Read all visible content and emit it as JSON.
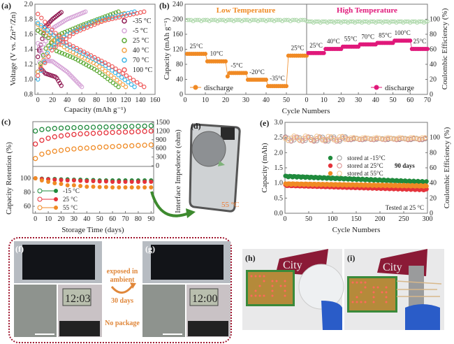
{
  "colors": {
    "green": "#1f8a3c",
    "red": "#e5323b",
    "orange": "#f08a24",
    "pink": "#e0187a",
    "ce_light": "#a9d6a6",
    "dotted_box": "#a0162e"
  },
  "chart_data": [
    {
      "panel": "(a)",
      "type": "scatter",
      "xlabel": "Capacity (mAh g⁻¹)",
      "ylabel": "Voltage (V vs. Zn²⁺/Zn)",
      "xlim": [
        0,
        160
      ],
      "ylim": [
        0.8,
        2.0
      ],
      "xticks": [
        "0",
        "20",
        "40",
        "60",
        "80",
        "100",
        "120",
        "140",
        "160"
      ],
      "yticks": [
        "0.8",
        "1.0",
        "1.2",
        "1.4",
        "1.6",
        "1.8",
        "2.0"
      ],
      "legend_position": "right",
      "series": [
        {
          "name": "-35 °C",
          "color": "#8e1650",
          "charge": [
            [
              0,
              1.3
            ],
            [
              5,
              1.5
            ],
            [
              10,
              1.7
            ],
            [
              20,
              1.8
            ],
            [
              33,
              1.9
            ]
          ],
          "discharge": [
            [
              0,
              1.65
            ],
            [
              4,
              1.15
            ],
            [
              10,
              1.08
            ],
            [
              25,
              1.03
            ],
            [
              33,
              0.9
            ]
          ]
        },
        {
          "name": "-5 °C",
          "color": "#d7a6d8",
          "charge": [
            [
              0,
              1.1
            ],
            [
              5,
              1.4
            ],
            [
              20,
              1.68
            ],
            [
              40,
              1.8
            ],
            [
              65,
              1.9
            ]
          ],
          "discharge": [
            [
              0,
              1.48
            ],
            [
              10,
              1.25
            ],
            [
              20,
              1.24
            ],
            [
              40,
              1.1
            ],
            [
              60,
              0.9
            ]
          ]
        },
        {
          "name": "25 °C",
          "color": "#5aa832",
          "charge": [
            [
              0,
              1.1
            ],
            [
              10,
              1.4
            ],
            [
              30,
              1.6
            ],
            [
              60,
              1.72
            ],
            [
              110,
              1.9
            ]
          ],
          "discharge": [
            [
              0,
              1.65
            ],
            [
              15,
              1.55
            ],
            [
              25,
              1.38
            ],
            [
              50,
              1.28
            ],
            [
              80,
              1.12
            ],
            [
              110,
              0.9
            ]
          ]
        },
        {
          "name": "40 °C",
          "color": "#f3a348",
          "charge": [
            [
              0,
              1.1
            ],
            [
              20,
              1.5
            ],
            [
              60,
              1.7
            ],
            [
              118,
              1.88
            ]
          ],
          "discharge": [
            [
              0,
              1.73
            ],
            [
              20,
              1.55
            ],
            [
              40,
              1.4
            ],
            [
              80,
              1.2
            ],
            [
              120,
              0.9
            ]
          ]
        },
        {
          "name": "70 °C",
          "color": "#3fb6e6",
          "charge": [
            [
              0,
              1.0
            ],
            [
              15,
              1.4
            ],
            [
              40,
              1.6
            ],
            [
              80,
              1.78
            ],
            [
              132,
              1.9
            ]
          ],
          "discharge": [
            [
              0,
              1.75
            ],
            [
              20,
              1.6
            ],
            [
              40,
              1.45
            ],
            [
              90,
              1.2
            ],
            [
              132,
              0.9
            ]
          ]
        },
        {
          "name": "100 °C",
          "color": "#ef5b5b",
          "charge": [
            [
              0,
              1.05
            ],
            [
              20,
              1.4
            ],
            [
              50,
              1.62
            ],
            [
              90,
              1.78
            ],
            [
              145,
              1.9
            ]
          ],
          "discharge": [
            [
              0,
              1.87
            ],
            [
              20,
              1.65
            ],
            [
              40,
              1.48
            ],
            [
              100,
              1.18
            ],
            [
              145,
              0.9
            ]
          ]
        }
      ]
    },
    {
      "panel": "(b)",
      "type": "scatter",
      "xlabel": "Cycle Numbers",
      "ylabel": "Capacity (mAh g⁻¹)",
      "y2label": "Coulombic Efficiency (%)",
      "ylim": [
        0,
        240
      ],
      "y2lim": [
        0,
        120
      ],
      "yticks": [
        "0",
        "40",
        "80",
        "120",
        "160",
        "200",
        "240"
      ],
      "y2ticks": [
        "0",
        "20",
        "40",
        "60",
        "80",
        "100"
      ],
      "sections": [
        {
          "title": "Low Temperature",
          "title_color": "#f08a24",
          "color": "#f08a24",
          "legend": "discharge",
          "xlim": [
            0,
            60
          ],
          "xticks": [
            "0",
            "10",
            "20",
            "30",
            "40",
            "50"
          ],
          "steps": [
            {
              "label": "25°C",
              "cycles": [
                1,
                10
              ],
              "capacity": 108
            },
            {
              "label": "10°C",
              "cycles": [
                11,
                20
              ],
              "capacity": 88
            },
            {
              "label": "-5°C",
              "cycles": [
                21,
                30
              ],
              "capacity": 57
            },
            {
              "label": "-20°C",
              "cycles": [
                31,
                40
              ],
              "capacity": 39
            },
            {
              "label": "-35°C",
              "cycles": [
                41,
                50
              ],
              "capacity": 22
            },
            {
              "label": "25°C",
              "cycles": [
                51,
                60
              ],
              "capacity": 103
            }
          ],
          "coulombic_efficiency": 99
        },
        {
          "title": "High Temperature",
          "title_color": "#e0187a",
          "color": "#e0187a",
          "legend": "discharge",
          "xlim": [
            0,
            70
          ],
          "xticks": [
            "0",
            "10",
            "20",
            "30",
            "40",
            "50",
            "60",
            "70"
          ],
          "steps": [
            {
              "label": "25°C",
              "cycles": [
                1,
                10
              ],
              "capacity": 110
            },
            {
              "label": "40°C",
              "cycles": [
                11,
                20
              ],
              "capacity": 121
            },
            {
              "label": "55°C",
              "cycles": [
                21,
                30
              ],
              "capacity": 127
            },
            {
              "label": "70°C",
              "cycles": [
                31,
                40
              ],
              "capacity": 133
            },
            {
              "label": "85°C",
              "cycles": [
                41,
                50
              ],
              "capacity": 137
            },
            {
              "label": "100°C",
              "cycles": [
                51,
                60
              ],
              "capacity": 143
            },
            {
              "label": "25°C",
              "cycles": [
                61,
                70
              ],
              "capacity": 121
            }
          ],
          "coulombic_efficiency": 97
        }
      ]
    },
    {
      "panel": "(c)",
      "type": "scatter",
      "xlabel": "Storage Time (days)",
      "ylabel": "Capacity Retention (%)",
      "y2label": "Interface Impedence (ohm)",
      "xlim": [
        0,
        90
      ],
      "xticks": [
        "0",
        "10",
        "20",
        "30",
        "40",
        "50",
        "60",
        "70",
        "80",
        "90"
      ],
      "impedance_ticks": [
        "0",
        "300",
        "600",
        "900",
        "1200",
        "1500"
      ],
      "retention_ticks": [
        "60",
        "80",
        "100"
      ],
      "days": [
        0,
        5,
        10,
        15,
        20,
        25,
        30,
        35,
        40,
        45,
        50,
        55,
        60,
        65,
        70,
        75,
        80,
        85,
        90
      ],
      "series": [
        {
          "name": "-15 °C",
          "color": "#1f8a3c",
          "impedance": [
            1200,
            1250,
            1270,
            1290,
            1300,
            1310,
            1315,
            1320,
            1325,
            1330,
            1335,
            1340,
            1345,
            1350,
            1355,
            1360,
            1365,
            1370,
            1380
          ],
          "retention": [
            100,
            99.5,
            99,
            99,
            98.5,
            98.5,
            98,
            98,
            97.5,
            97.5,
            97,
            97,
            97,
            97,
            97,
            97,
            97,
            97,
            97
          ]
        },
        {
          "name": "25 °C",
          "color": "#e5323b",
          "impedance": [
            750,
            880,
            950,
            1000,
            1030,
            1060,
            1080,
            1100,
            1110,
            1120,
            1130,
            1140,
            1150,
            1160,
            1165,
            1170,
            1180,
            1190,
            1200
          ],
          "retention": [
            100,
            99,
            98.5,
            98,
            97.5,
            97,
            97,
            96.5,
            96,
            96,
            95.5,
            95.5,
            95,
            95,
            95,
            95,
            95,
            95,
            95
          ]
        },
        {
          "name": "55 °C",
          "color": "#f08a24",
          "impedance": [
            250,
            400,
            460,
            500,
            530,
            560,
            580,
            600,
            610,
            620,
            640,
            650,
            660,
            670,
            680,
            690,
            700,
            710,
            720
          ],
          "retention": [
            100,
            97,
            95,
            93,
            92,
            90,
            90,
            89,
            88,
            88,
            87.5,
            87.5,
            87,
            87,
            87,
            87,
            87,
            87,
            87
          ]
        }
      ]
    },
    {
      "panel": "(e)",
      "type": "scatter",
      "xlabel": "Cycle Numbers",
      "ylabel": "Capacity (mAh)",
      "y2label": "Coulombic Efficiency (%)",
      "xlim": [
        0,
        300
      ],
      "ylim": [
        0,
        3.0
      ],
      "y2lim": [
        0,
        120
      ],
      "xticks": [
        "0",
        "50",
        "100",
        "150",
        "200",
        "250",
        "300"
      ],
      "yticks": [
        "0.0",
        "0.5",
        "1.0",
        "1.5",
        "2.0",
        "2.5",
        "3.0"
      ],
      "y2ticks": [
        "0",
        "20",
        "40",
        "60",
        "80",
        "100"
      ],
      "legend_note": "90 days",
      "annotation": "Tested at 25 °C",
      "series": [
        {
          "name": "stored at -15°C",
          "color": "#1f8a3c",
          "ce_color": "#9a9a9a",
          "capacity_start": 1.22,
          "capacity_end": 1.03,
          "coulombic_efficiency": 98
        },
        {
          "name": "stored at 25°C",
          "color": "#e5323b",
          "ce_color": "#d98a8a",
          "capacity_start": 0.92,
          "capacity_end": 0.78,
          "coulombic_efficiency": 98
        },
        {
          "name": "stored at 55°C",
          "color": "#f08a24",
          "ce_color": "#f2c48a",
          "capacity_start": 0.97,
          "capacity_end": 0.9,
          "coulombic_efficiency": 99
        }
      ]
    }
  ],
  "panel_d": {
    "label": "(d)",
    "temperature": "55 °C"
  },
  "panel_fg": {
    "label_f": "(f)",
    "label_g": "(g)",
    "arrow_top": "exposed in",
    "arrow_top2": "ambient",
    "arrow_bottom": "30 days",
    "note": "No package",
    "clock_f": "12:03",
    "clock_g": "12:00"
  },
  "panel_h": {
    "label": "(h)",
    "sign": "City"
  },
  "panel_i": {
    "label": "(i)",
    "sign": "City"
  }
}
